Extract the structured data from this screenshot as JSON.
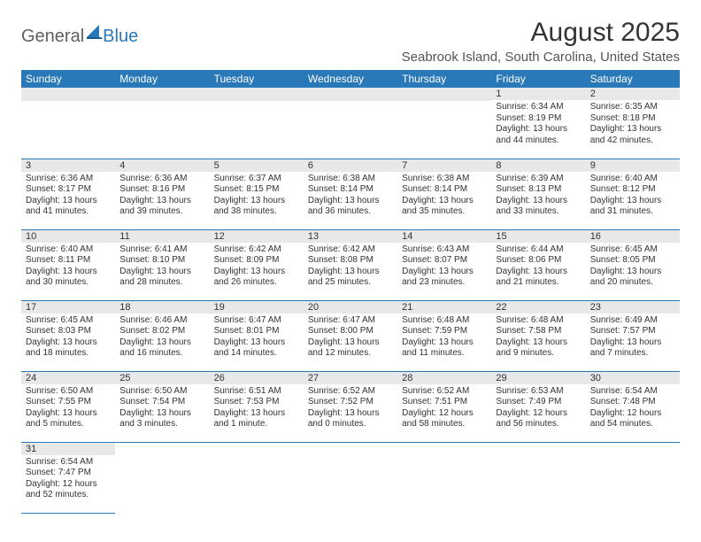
{
  "logo": {
    "part1": "General",
    "part2": "Blue"
  },
  "title": "August 2025",
  "location": "Seabrook Island, South Carolina, United States",
  "weekdays": [
    "Sunday",
    "Monday",
    "Tuesday",
    "Wednesday",
    "Thursday",
    "Friday",
    "Saturday"
  ],
  "colors": {
    "header_bg": "#2978b8",
    "header_text": "#ffffff",
    "daynum_bg": "#e8e8e8",
    "border": "#2978b8"
  },
  "fonts": {
    "title_size": 30,
    "location_size": 15,
    "weekday_size": 12,
    "daynum_size": 11,
    "cell_size": 10
  },
  "weeks": [
    [
      {
        "day": "",
        "lines": []
      },
      {
        "day": "",
        "lines": []
      },
      {
        "day": "",
        "lines": []
      },
      {
        "day": "",
        "lines": []
      },
      {
        "day": "",
        "lines": []
      },
      {
        "day": "1",
        "lines": [
          "Sunrise: 6:34 AM",
          "Sunset: 8:19 PM",
          "Daylight: 13 hours and 44 minutes."
        ]
      },
      {
        "day": "2",
        "lines": [
          "Sunrise: 6:35 AM",
          "Sunset: 8:18 PM",
          "Daylight: 13 hours and 42 minutes."
        ]
      }
    ],
    [
      {
        "day": "3",
        "lines": [
          "Sunrise: 6:36 AM",
          "Sunset: 8:17 PM",
          "Daylight: 13 hours and 41 minutes."
        ]
      },
      {
        "day": "4",
        "lines": [
          "Sunrise: 6:36 AM",
          "Sunset: 8:16 PM",
          "Daylight: 13 hours and 39 minutes."
        ]
      },
      {
        "day": "5",
        "lines": [
          "Sunrise: 6:37 AM",
          "Sunset: 8:15 PM",
          "Daylight: 13 hours and 38 minutes."
        ]
      },
      {
        "day": "6",
        "lines": [
          "Sunrise: 6:38 AM",
          "Sunset: 8:14 PM",
          "Daylight: 13 hours and 36 minutes."
        ]
      },
      {
        "day": "7",
        "lines": [
          "Sunrise: 6:38 AM",
          "Sunset: 8:14 PM",
          "Daylight: 13 hours and 35 minutes."
        ]
      },
      {
        "day": "8",
        "lines": [
          "Sunrise: 6:39 AM",
          "Sunset: 8:13 PM",
          "Daylight: 13 hours and 33 minutes."
        ]
      },
      {
        "day": "9",
        "lines": [
          "Sunrise: 6:40 AM",
          "Sunset: 8:12 PM",
          "Daylight: 13 hours and 31 minutes."
        ]
      }
    ],
    [
      {
        "day": "10",
        "lines": [
          "Sunrise: 6:40 AM",
          "Sunset: 8:11 PM",
          "Daylight: 13 hours and 30 minutes."
        ]
      },
      {
        "day": "11",
        "lines": [
          "Sunrise: 6:41 AM",
          "Sunset: 8:10 PM",
          "Daylight: 13 hours and 28 minutes."
        ]
      },
      {
        "day": "12",
        "lines": [
          "Sunrise: 6:42 AM",
          "Sunset: 8:09 PM",
          "Daylight: 13 hours and 26 minutes."
        ]
      },
      {
        "day": "13",
        "lines": [
          "Sunrise: 6:42 AM",
          "Sunset: 8:08 PM",
          "Daylight: 13 hours and 25 minutes."
        ]
      },
      {
        "day": "14",
        "lines": [
          "Sunrise: 6:43 AM",
          "Sunset: 8:07 PM",
          "Daylight: 13 hours and 23 minutes."
        ]
      },
      {
        "day": "15",
        "lines": [
          "Sunrise: 6:44 AM",
          "Sunset: 8:06 PM",
          "Daylight: 13 hours and 21 minutes."
        ]
      },
      {
        "day": "16",
        "lines": [
          "Sunrise: 6:45 AM",
          "Sunset: 8:05 PM",
          "Daylight: 13 hours and 20 minutes."
        ]
      }
    ],
    [
      {
        "day": "17",
        "lines": [
          "Sunrise: 6:45 AM",
          "Sunset: 8:03 PM",
          "Daylight: 13 hours and 18 minutes."
        ]
      },
      {
        "day": "18",
        "lines": [
          "Sunrise: 6:46 AM",
          "Sunset: 8:02 PM",
          "Daylight: 13 hours and 16 minutes."
        ]
      },
      {
        "day": "19",
        "lines": [
          "Sunrise: 6:47 AM",
          "Sunset: 8:01 PM",
          "Daylight: 13 hours and 14 minutes."
        ]
      },
      {
        "day": "20",
        "lines": [
          "Sunrise: 6:47 AM",
          "Sunset: 8:00 PM",
          "Daylight: 13 hours and 12 minutes."
        ]
      },
      {
        "day": "21",
        "lines": [
          "Sunrise: 6:48 AM",
          "Sunset: 7:59 PM",
          "Daylight: 13 hours and 11 minutes."
        ]
      },
      {
        "day": "22",
        "lines": [
          "Sunrise: 6:48 AM",
          "Sunset: 7:58 PM",
          "Daylight: 13 hours and 9 minutes."
        ]
      },
      {
        "day": "23",
        "lines": [
          "Sunrise: 6:49 AM",
          "Sunset: 7:57 PM",
          "Daylight: 13 hours and 7 minutes."
        ]
      }
    ],
    [
      {
        "day": "24",
        "lines": [
          "Sunrise: 6:50 AM",
          "Sunset: 7:55 PM",
          "Daylight: 13 hours and 5 minutes."
        ]
      },
      {
        "day": "25",
        "lines": [
          "Sunrise: 6:50 AM",
          "Sunset: 7:54 PM",
          "Daylight: 13 hours and 3 minutes."
        ]
      },
      {
        "day": "26",
        "lines": [
          "Sunrise: 6:51 AM",
          "Sunset: 7:53 PM",
          "Daylight: 13 hours and 1 minute."
        ]
      },
      {
        "day": "27",
        "lines": [
          "Sunrise: 6:52 AM",
          "Sunset: 7:52 PM",
          "Daylight: 13 hours and 0 minutes."
        ]
      },
      {
        "day": "28",
        "lines": [
          "Sunrise: 6:52 AM",
          "Sunset: 7:51 PM",
          "Daylight: 12 hours and 58 minutes."
        ]
      },
      {
        "day": "29",
        "lines": [
          "Sunrise: 6:53 AM",
          "Sunset: 7:49 PM",
          "Daylight: 12 hours and 56 minutes."
        ]
      },
      {
        "day": "30",
        "lines": [
          "Sunrise: 6:54 AM",
          "Sunset: 7:48 PM",
          "Daylight: 12 hours and 54 minutes."
        ]
      }
    ],
    [
      {
        "day": "31",
        "lines": [
          "Sunrise: 6:54 AM",
          "Sunset: 7:47 PM",
          "Daylight: 12 hours and 52 minutes."
        ]
      },
      {
        "day": "",
        "lines": []
      },
      {
        "day": "",
        "lines": []
      },
      {
        "day": "",
        "lines": []
      },
      {
        "day": "",
        "lines": []
      },
      {
        "day": "",
        "lines": []
      },
      {
        "day": "",
        "lines": []
      }
    ]
  ]
}
